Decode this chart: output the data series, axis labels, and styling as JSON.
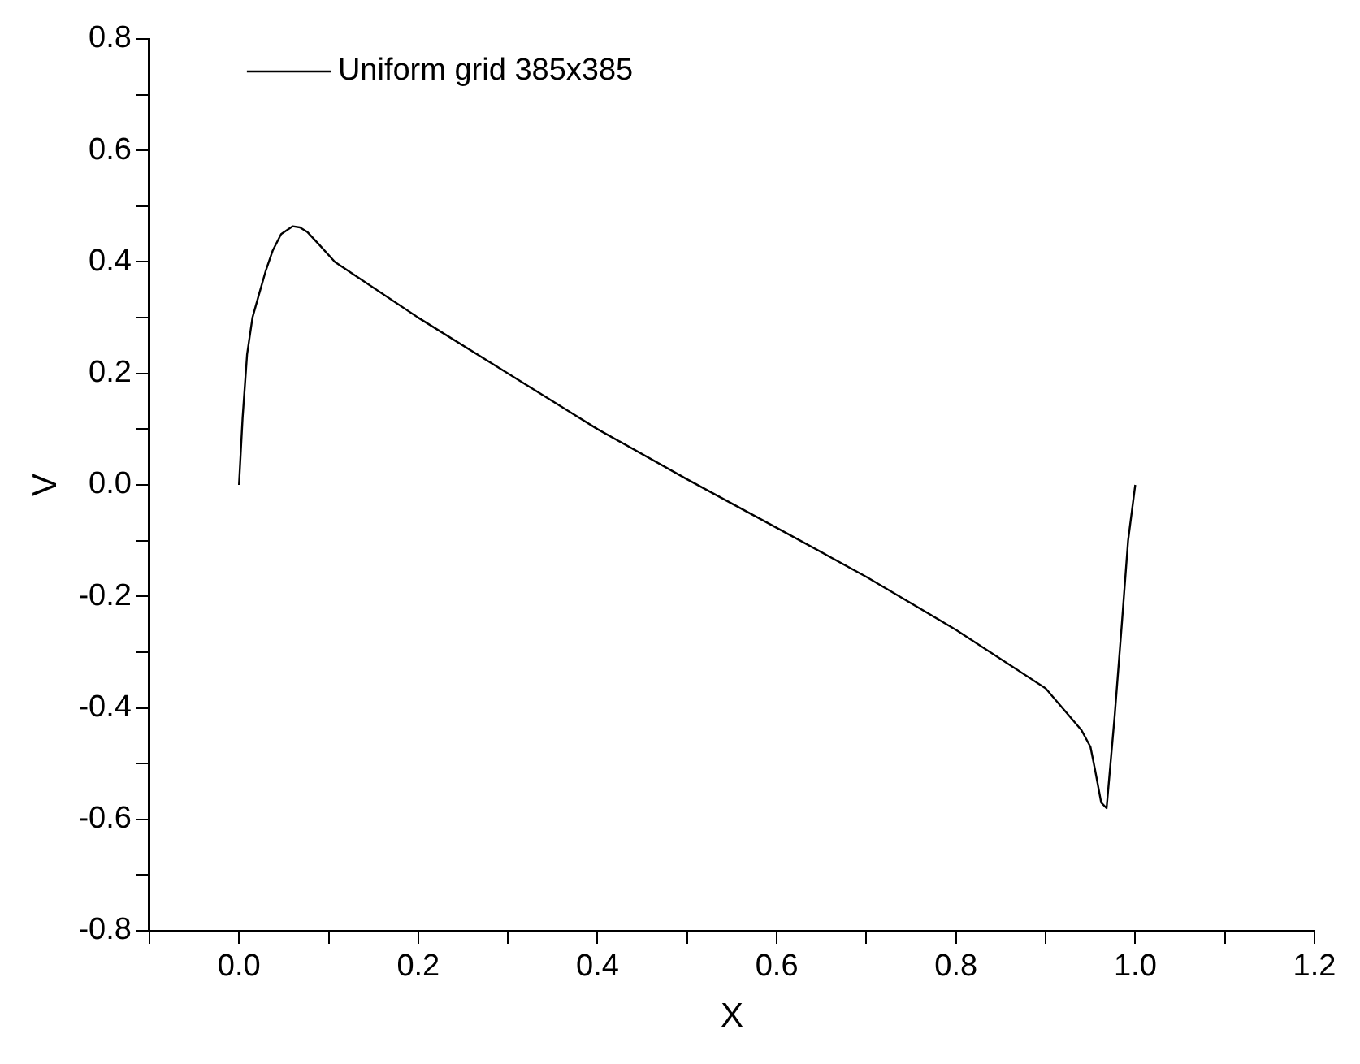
{
  "chart_data": {
    "type": "line",
    "xlabel": "X",
    "ylabel": "V",
    "legend": "top left",
    "marker": "none",
    "line_style": "solid",
    "grid": false,
    "xlim": [
      -0.1,
      1.2
    ],
    "xticks": [
      {
        "value": -0.1,
        "label": null
      },
      {
        "value": 0,
        "label": "0.0"
      },
      {
        "value": 0.1,
        "label": null
      },
      {
        "value": 0.2,
        "label": "0.2"
      },
      {
        "value": 0.3,
        "label": null
      },
      {
        "value": 0.4,
        "label": "0.4"
      },
      {
        "value": 0.5,
        "label": null
      },
      {
        "value": 0.6,
        "label": "0.6"
      },
      {
        "value": 0.7,
        "label": null
      },
      {
        "value": 0.8,
        "label": "0.8"
      },
      {
        "value": 0.9,
        "label": null
      },
      {
        "value": 1,
        "label": "1.0"
      },
      {
        "value": 1.1,
        "label": null
      },
      {
        "value": 1.2,
        "label": "1.2"
      }
    ],
    "ylim": [
      -0.8,
      0.8
    ],
    "yticks": [
      {
        "value": -0.8,
        "label": "-0.8"
      },
      {
        "value": -0.7,
        "label": null
      },
      {
        "value": -0.6,
        "label": "-0.6"
      },
      {
        "value": -0.5,
        "label": null
      },
      {
        "value": -0.4,
        "label": "-0.4"
      },
      {
        "value": -0.3,
        "label": null
      },
      {
        "value": -0.2,
        "label": "-0.2"
      },
      {
        "value": -0.1,
        "label": null
      },
      {
        "value": 0,
        "label": "0.0"
      },
      {
        "value": 0.1,
        "label": null
      },
      {
        "value": 0.2,
        "label": "0.2"
      },
      {
        "value": 0.3,
        "label": null
      },
      {
        "value": 0.4,
        "label": "0.4"
      },
      {
        "value": 0.5,
        "label": null
      },
      {
        "value": 0.6,
        "label": "0.6"
      },
      {
        "value": 0.7,
        "label": null
      },
      {
        "value": 0.8,
        "label": "0.8"
      }
    ],
    "series": [
      {
        "name": "Uniform grid 385x385",
        "color": "#000000",
        "x": [
          0,
          0.004,
          0.009,
          0.015,
          0.022,
          0.03,
          0.0375,
          0.047,
          0.06,
          0.068,
          0.076,
          0.09,
          0.107,
          0.2,
          0.3,
          0.4,
          0.5,
          0.6,
          0.7,
          0.8,
          0.9,
          0.94,
          0.95,
          0.955,
          0.962,
          0.968,
          0.977,
          0.985,
          0.992,
          1
        ],
        "values": [
          0,
          0.12,
          0.234,
          0.3,
          0.34,
          0.385,
          0.42,
          0.45,
          0.464,
          0.462,
          0.454,
          0.43,
          0.4,
          0.3,
          0.2,
          0.1,
          0.01,
          -0.077,
          -0.165,
          -0.26,
          -0.365,
          -0.44,
          -0.47,
          -0.51,
          -0.57,
          -0.58,
          -0.415,
          -0.25,
          -0.1,
          0
        ]
      }
    ]
  }
}
